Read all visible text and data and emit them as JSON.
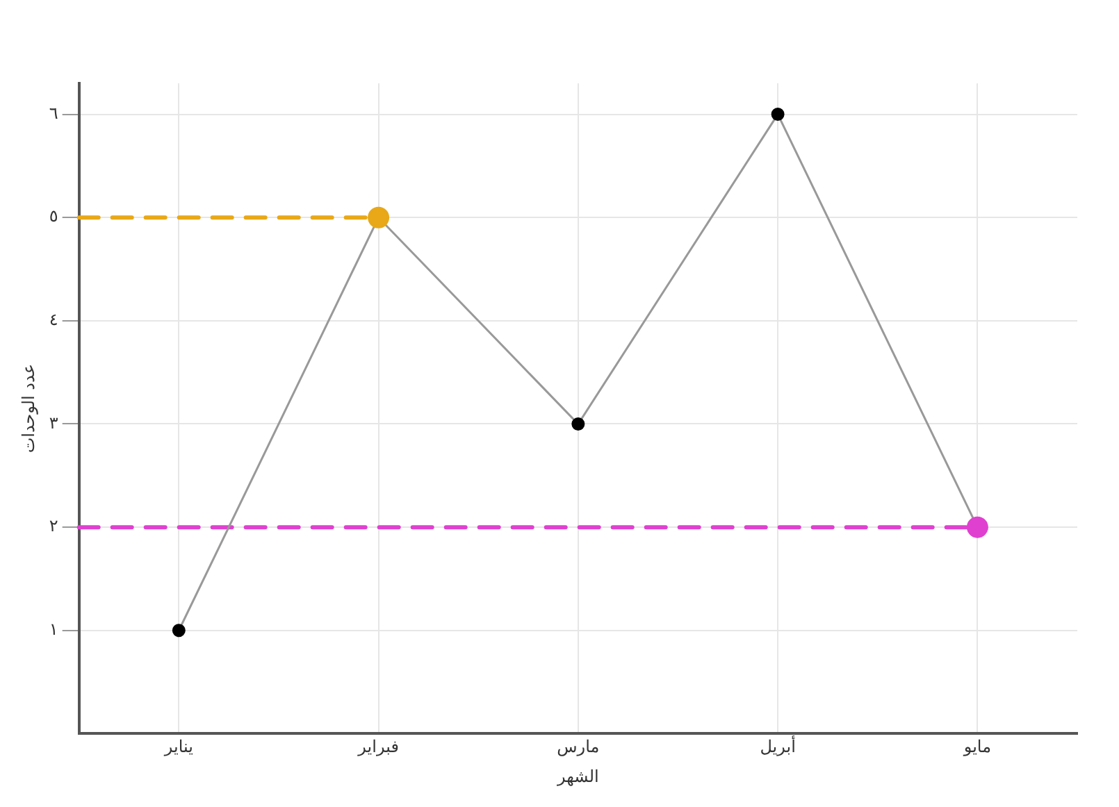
{
  "chart_data": {
    "type": "line",
    "xlabel": "الشهر",
    "ylabel": "عدد الوحدات",
    "categories": [
      "يناير",
      "فبراير",
      "مارس",
      "أبريل",
      "مايو"
    ],
    "series": [
      {
        "color": "#999999",
        "values": [
          1,
          5,
          3,
          6,
          2
        ]
      }
    ],
    "ylim": [
      0,
      6.3
    ],
    "yticks": [
      {
        "value": 1,
        "label": "١"
      },
      {
        "value": 2,
        "label": "٢"
      },
      {
        "value": 3,
        "label": "٣"
      },
      {
        "value": 4,
        "label": "٤"
      },
      {
        "value": 5,
        "label": "٥"
      },
      {
        "value": 6,
        "label": "٦"
      }
    ],
    "ref_lines": [
      {
        "axis": "y",
        "value": 5,
        "color": "#e8a817",
        "line_style": "dashed"
      },
      {
        "axis": "y",
        "value": 2,
        "color": "#e040d0",
        "line_style": "dashed"
      }
    ],
    "grid": true,
    "marker": "circle",
    "line_style": "solid",
    "legend": false
  }
}
